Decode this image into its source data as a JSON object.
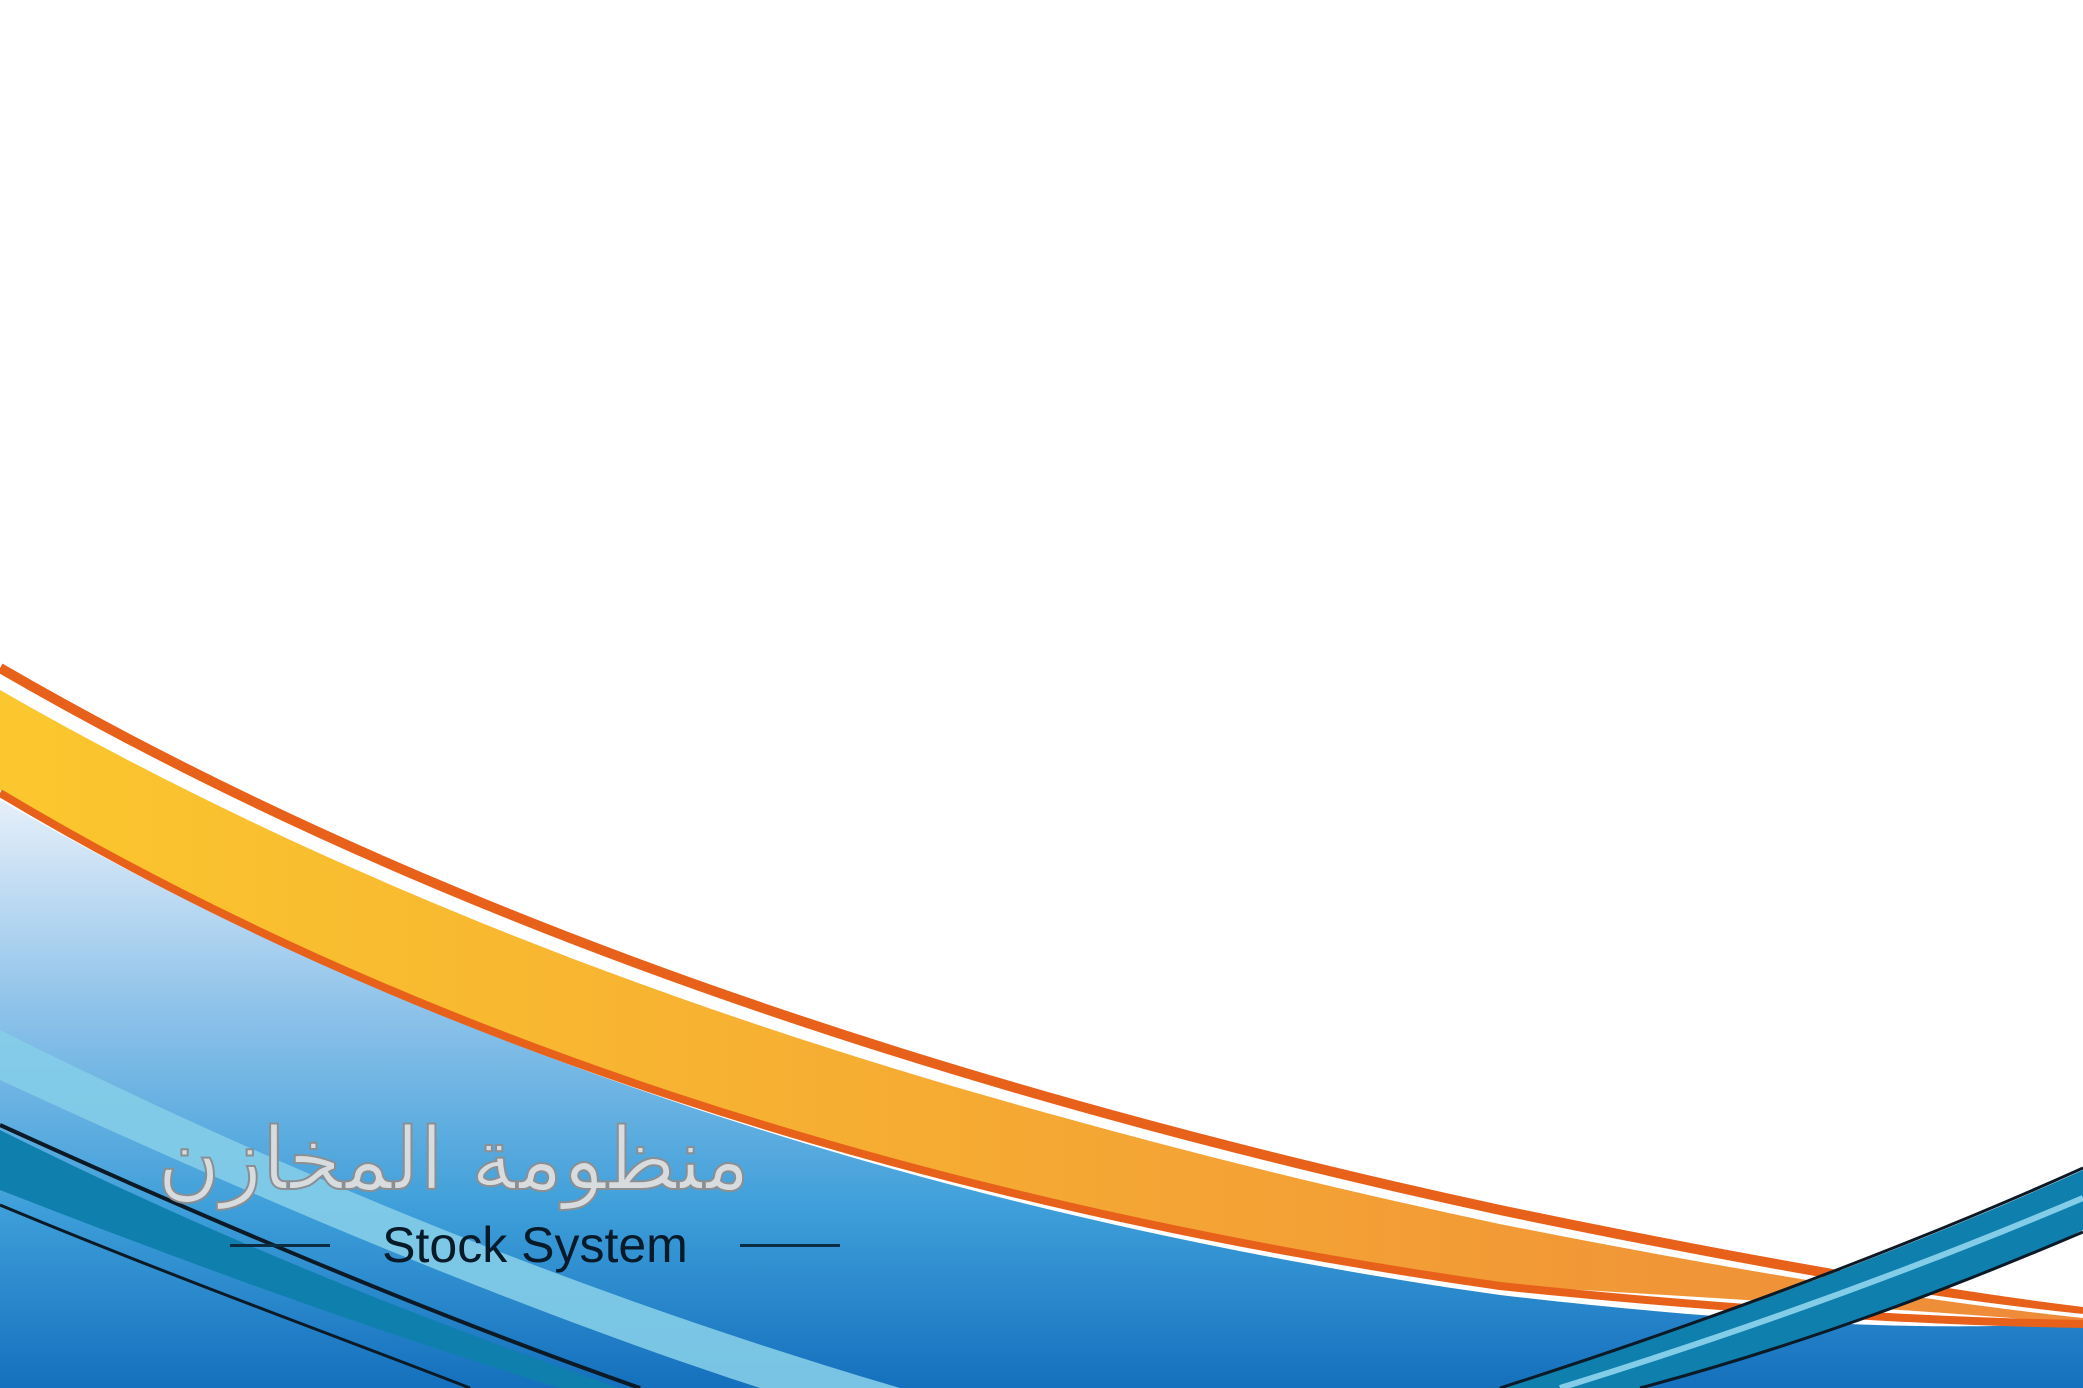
{
  "app": {
    "arabic_title": "منظومة المخازن",
    "english_title": "Stock System"
  },
  "colors": {
    "background": "#ffffff",
    "orange_stripe": "#e8611a",
    "yellow_band_start": "#fbc52f",
    "yellow_band_end": "#f08f35",
    "blue_light": "#d8e8f6",
    "blue_mid": "#5aaee0",
    "blue_deep": "#1a78c2",
    "teal_band": "#0f7fae",
    "cyan_light": "#84cde8",
    "dark_line": "#0b1a26"
  }
}
